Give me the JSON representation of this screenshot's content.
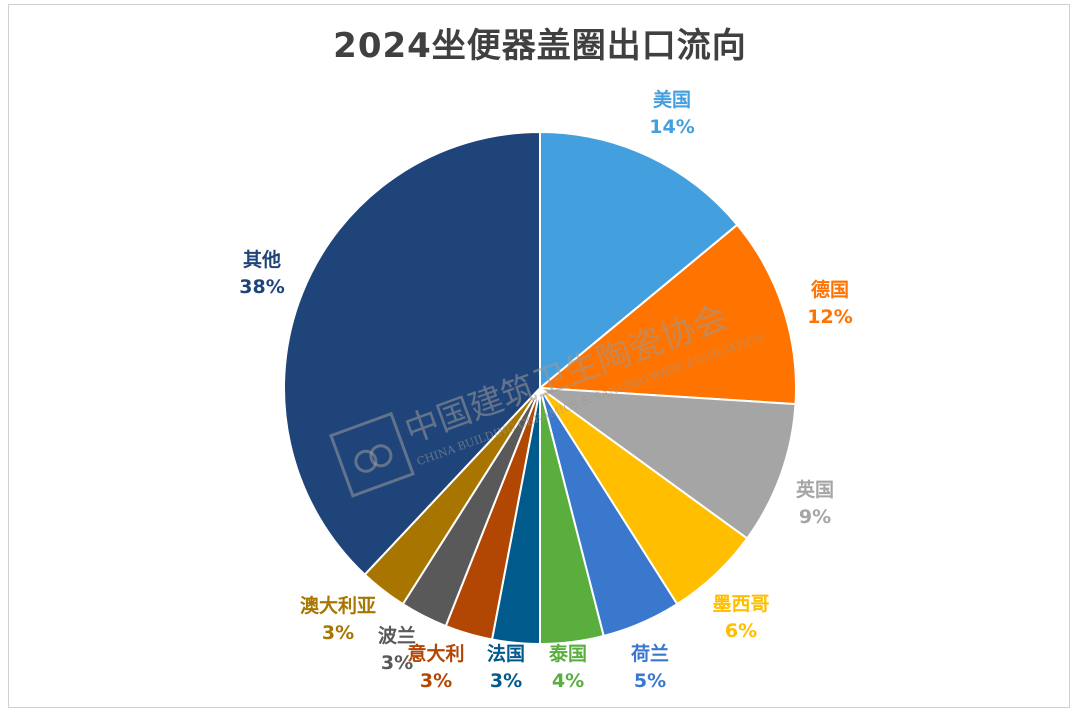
{
  "chart_data": {
    "type": "pie",
    "title": "2024坐便器盖圈出口流向",
    "slices": [
      {
        "label": "美国",
        "value": 14,
        "percent": "14%",
        "color": "#449FDF"
      },
      {
        "label": "德国",
        "value": 12,
        "percent": "12%",
        "color": "#FF7300"
      },
      {
        "label": "英国",
        "value": 9,
        "percent": "9%",
        "color": "#A5A5A5"
      },
      {
        "label": "墨西哥",
        "value": 6,
        "percent": "6%",
        "color": "#FFBE00"
      },
      {
        "label": "荷兰",
        "value": 5,
        "percent": "5%",
        "color": "#3A78CE"
      },
      {
        "label": "泰国",
        "value": 4,
        "percent": "4%",
        "color": "#5AAE3E"
      },
      {
        "label": "法国",
        "value": 3,
        "percent": "3%",
        "color": "#005A8C"
      },
      {
        "label": "意大利",
        "value": 3,
        "percent": "3%",
        "color": "#B24704"
      },
      {
        "label": "波兰",
        "value": 3,
        "percent": "3%",
        "color": "#595959"
      },
      {
        "label": "澳大利亚",
        "value": 3,
        "percent": "3%",
        "color": "#A87600"
      },
      {
        "label": "其他",
        "value": 38,
        "percent": "38%",
        "color": "#1F4479"
      }
    ],
    "legend": "none"
  },
  "watermark": {
    "cn": "中国建筑卫生陶瓷协会",
    "en": "CHINA BUILDING CERAMICS & SANITARYWARE ASSOCIATION"
  }
}
